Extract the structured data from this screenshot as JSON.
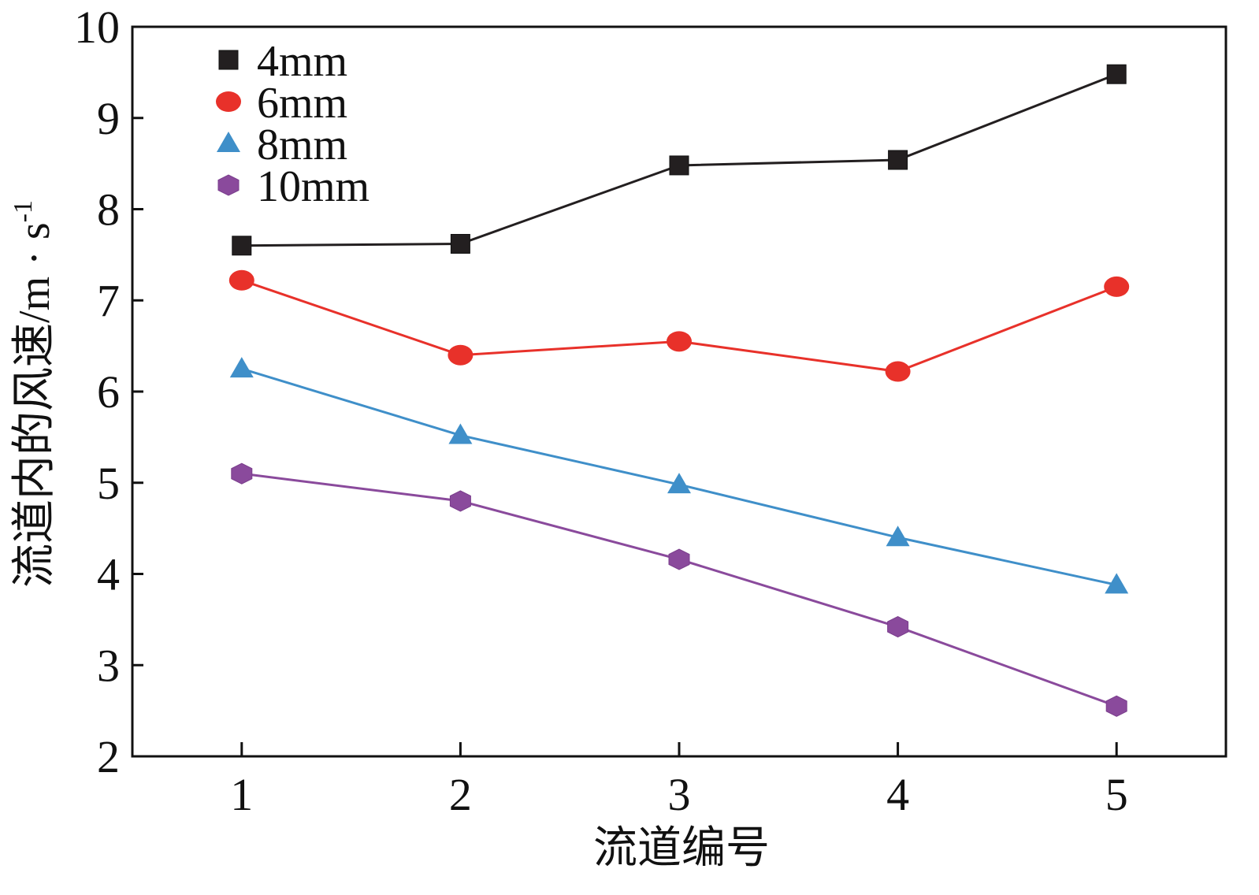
{
  "chart_data": {
    "type": "line",
    "xlabel": "流道编号",
    "ylabel": "流道内的风速/m · s",
    "ylabel_superscript": "-1",
    "x": [
      1,
      2,
      3,
      4,
      5
    ],
    "xlim": [
      0.5,
      5.5
    ],
    "ylim": [
      2,
      10
    ],
    "xticks": [
      "1",
      "2",
      "3",
      "4",
      "5"
    ],
    "yticks": [
      "2",
      "3",
      "4",
      "5",
      "6",
      "7",
      "8",
      "9",
      "10"
    ],
    "grid": false,
    "legend_position": "top-left",
    "series": [
      {
        "name": "4mm",
        "marker": "square",
        "color": "#231f20",
        "values": [
          7.6,
          7.62,
          8.48,
          8.54,
          9.48
        ]
      },
      {
        "name": "6mm",
        "marker": "circle",
        "color": "#e8312a",
        "values": [
          7.22,
          6.4,
          6.55,
          6.22,
          7.15
        ]
      },
      {
        "name": "8mm",
        "marker": "triangle",
        "color": "#3f8fc9",
        "values": [
          6.25,
          5.52,
          4.98,
          4.4,
          3.88
        ]
      },
      {
        "name": "10mm",
        "marker": "hexagon",
        "color": "#8a4a9c",
        "values": [
          5.1,
          4.8,
          4.16,
          3.42,
          2.55
        ]
      }
    ]
  }
}
